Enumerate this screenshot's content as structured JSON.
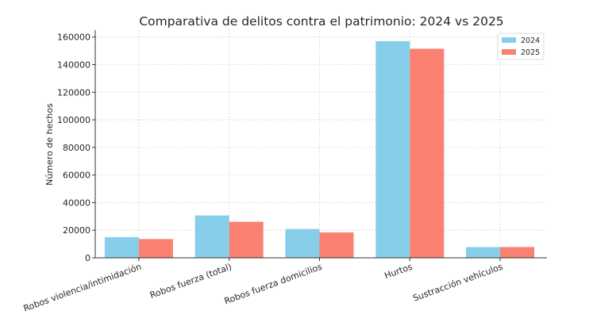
{
  "chart_data": {
    "type": "bar",
    "title": "Comparativa de delitos contra el patrimonio: 2024 vs 2025",
    "xlabel": "",
    "ylabel": "Número de hechos",
    "categories": [
      "Robos violencia/intimidación",
      "Robos fuerza (total)",
      "Robos fuerza domicilios",
      "Hurtos",
      "Sustracción vehículos"
    ],
    "series": [
      {
        "name": "2024",
        "color": "#87CEEB",
        "values": [
          15000,
          30700,
          20900,
          157000,
          7800
        ]
      },
      {
        "name": "2025",
        "color": "#FA8072",
        "values": [
          13600,
          26100,
          18400,
          151500,
          7800
        ]
      }
    ],
    "ylim": [
      0,
      165000
    ],
    "yticks": [
      0,
      20000,
      40000,
      60000,
      80000,
      100000,
      120000,
      140000,
      160000
    ],
    "grid": true,
    "legend_position": "top-right"
  }
}
